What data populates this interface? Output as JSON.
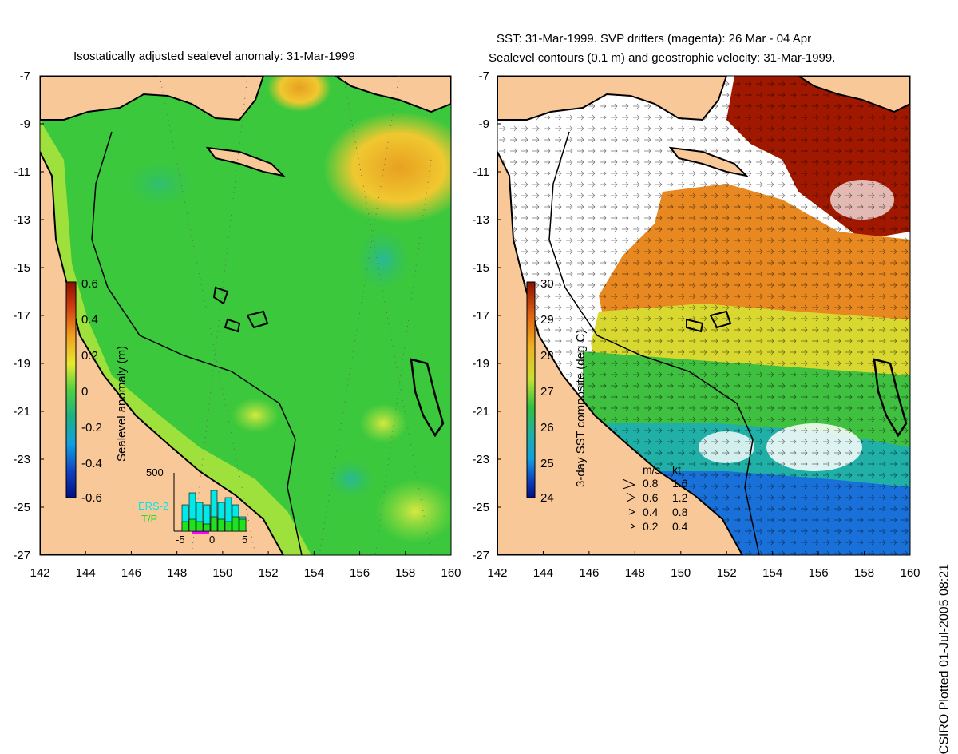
{
  "left_panel": {
    "title": "Isostatically adjusted sealevel anomaly: 31-Mar-1999",
    "colorbar": {
      "label": "Sealevel anomaly (m)",
      "ticks": [
        "0.6",
        "0.4",
        "0.2",
        "0",
        "-0.2",
        "-0.4",
        "-0.6"
      ],
      "min": -0.6,
      "max": 0.6
    },
    "histogram": {
      "ymax_label": "500",
      "x_ticks": [
        "-5",
        "0",
        "5"
      ],
      "legend": [
        "ERS-2",
        "T/P"
      ],
      "ers2_color": "#00e8e8",
      "tp_color": "#20e020",
      "ers2_bars": [
        0.55,
        0.8,
        0.6,
        0.55,
        0.85,
        0.6,
        0.7,
        0.55,
        0.3
      ],
      "tp_bars": [
        0.2,
        0.25,
        0.2,
        0.15,
        0.3,
        0.25,
        0.2,
        0.3,
        0.25
      ]
    }
  },
  "right_panel": {
    "title_line1": "SST: 31-Mar-1999. SVP drifters (magenta): 26 Mar - 04 Apr",
    "title_line2": "Sealevel contours (0.1 m) and geostrophic velocity: 31-Mar-1999.",
    "colorbar": {
      "label": "3-day SST composite (deg C)",
      "ticks": [
        "30",
        "29",
        "28",
        "27",
        "26",
        "25",
        "24"
      ],
      "min": 24,
      "max": 30
    },
    "velocity_legend": {
      "headers": [
        "m/s",
        "kt"
      ],
      "rows": [
        {
          "ms": "0.8",
          "kt": "1.6"
        },
        {
          "ms": "0.6",
          "kt": "1.2"
        },
        {
          "ms": "0.4",
          "kt": "0.8"
        },
        {
          "ms": "0.2",
          "kt": "0.4"
        }
      ]
    }
  },
  "axes": {
    "x_ticks": [
      "142",
      "144",
      "146",
      "148",
      "150",
      "152",
      "154",
      "156",
      "158",
      "160"
    ],
    "y_ticks": [
      "-7",
      "-9",
      "-11",
      "-13",
      "-15",
      "-17",
      "-19",
      "-21",
      "-23",
      "-25",
      "-27"
    ],
    "lon_range": [
      142,
      160
    ],
    "lat_range": [
      -27,
      -7
    ]
  },
  "credit": "CSIRO Plotted 01-Jul-2005 08:21",
  "colors": {
    "land": "#f8c898",
    "ocean_green": "#3cc83c",
    "sst_warm": "#a01800"
  }
}
